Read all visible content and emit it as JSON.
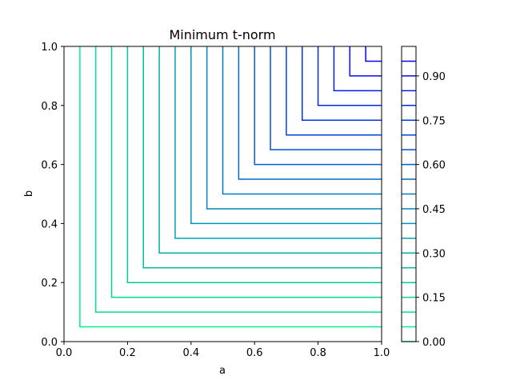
{
  "chart_data": {
    "type": "contour",
    "title": "Minimum t-norm",
    "xlabel": "a",
    "ylabel": "b",
    "xlim": [
      0.0,
      1.0
    ],
    "ylim": [
      0.0,
      1.0
    ],
    "x_ticks": [
      "0.0",
      "0.2",
      "0.4",
      "0.6",
      "0.8",
      "1.0"
    ],
    "y_ticks": [
      "0.0",
      "0.2",
      "0.4",
      "0.6",
      "0.8",
      "1.0"
    ],
    "function": "min(a, b)",
    "levels": [
      0.0,
      0.05,
      0.1,
      0.15,
      0.2,
      0.25,
      0.3,
      0.35,
      0.4,
      0.45,
      0.5,
      0.55,
      0.6,
      0.65,
      0.7,
      0.75,
      0.8,
      0.85,
      0.9,
      0.95
    ],
    "colormap": "winter_r",
    "color_low": "#00ff80",
    "color_high": "#0000ff",
    "colorbar": {
      "range": [
        0.0,
        1.0
      ],
      "ticks": [
        "0.00",
        "0.15",
        "0.30",
        "0.45",
        "0.60",
        "0.75",
        "0.90"
      ]
    },
    "grid": false
  }
}
